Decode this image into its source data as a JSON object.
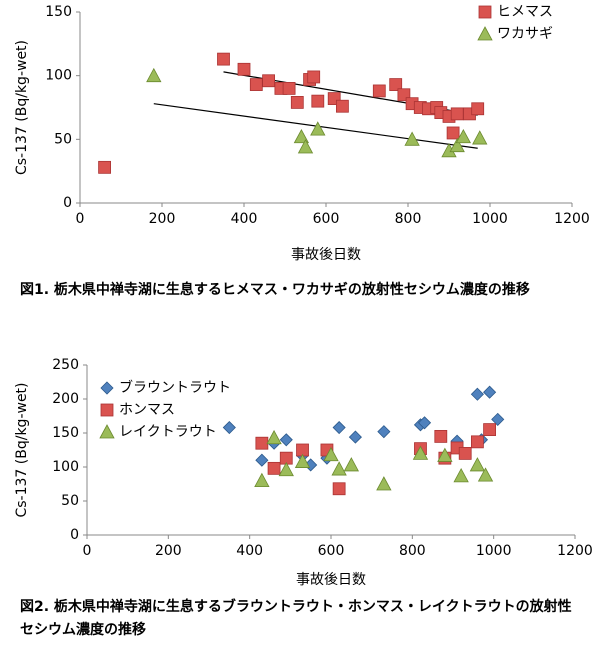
{
  "chart_data": [
    {
      "type": "scatter",
      "caption": [
        "図1. 栃木県中禅寺湖に生息するヒメマス・ワカサギの放射性セシウム濃度の推移"
      ],
      "xlabel": "事故後日数",
      "ylabel": "Cs-137 (Bq/kg-wet)",
      "xlim": [
        0,
        1200
      ],
      "xticks": [
        0,
        200,
        400,
        600,
        800,
        1000,
        1200
      ],
      "ylim": [
        0,
        150
      ],
      "yticks": [
        0,
        50,
        100,
        150
      ],
      "legend": "top-right",
      "series": [
        {
          "name": "ヒメマス",
          "color": "#d9534f",
          "marker": "square",
          "x": [
            60,
            350,
            400,
            430,
            460,
            490,
            510,
            530,
            560,
            570,
            580,
            620,
            640,
            730,
            770,
            790,
            810,
            830,
            850,
            870,
            880,
            900,
            910,
            920,
            950,
            970
          ],
          "values": [
            28,
            113,
            105,
            93,
            96,
            90,
            90,
            79,
            97,
            99,
            80,
            82,
            76,
            88,
            93,
            85,
            78,
            75,
            74,
            75,
            71,
            68,
            55,
            70,
            70,
            74
          ]
        },
        {
          "name": "ワカサギ",
          "color": "#9bbb59",
          "marker": "triangle",
          "x": [
            180,
            540,
            550,
            580,
            810,
            900,
            920,
            935,
            975
          ],
          "values": [
            100,
            52,
            44,
            58,
            50,
            41,
            45,
            52,
            51
          ]
        }
      ],
      "trendlines": [
        {
          "color": "#000000",
          "x": [
            350,
            970
          ],
          "y": [
            103,
            69
          ]
        },
        {
          "color": "#000000",
          "x": [
            180,
            970
          ],
          "y": [
            78,
            43
          ]
        }
      ]
    },
    {
      "type": "scatter",
      "caption": [
        "図2. 栃木県中禅寺湖に生息するブラウントラウト・ホンマス・レイクトラウトの放射性",
        "セシウム濃度の推移"
      ],
      "xlabel": "事故後日数",
      "ylabel": "Cs-137 (Bq/kg-wet)",
      "xlim": [
        0,
        1200
      ],
      "xticks": [
        0,
        200,
        400,
        600,
        800,
        1000,
        1200
      ],
      "ylim": [
        0,
        250
      ],
      "yticks": [
        0,
        50,
        100,
        150,
        200,
        250
      ],
      "legend": "top-left",
      "series": [
        {
          "name": "ブラウントラウト",
          "color": "#4f81bd",
          "marker": "diamond",
          "x": [
            350,
            430,
            460,
            490,
            530,
            550,
            590,
            620,
            660,
            730,
            820,
            830,
            910,
            960,
            970,
            990,
            1010
          ],
          "values": [
            158,
            110,
            135,
            140,
            117,
            103,
            113,
            158,
            144,
            152,
            162,
            165,
            138,
            207,
            140,
            210,
            170
          ]
        },
        {
          "name": "ホンマス",
          "color": "#d9534f",
          "marker": "square",
          "x": [
            430,
            460,
            490,
            530,
            590,
            620,
            820,
            870,
            880,
            910,
            930,
            960,
            990
          ],
          "values": [
            135,
            98,
            113,
            125,
            125,
            68,
            127,
            145,
            113,
            128,
            120,
            137,
            155
          ]
        },
        {
          "name": "レイクトラウト",
          "color": "#9bbb59",
          "marker": "triangle",
          "x": [
            430,
            460,
            490,
            530,
            600,
            620,
            650,
            730,
            820,
            880,
            920,
            960,
            980
          ],
          "values": [
            80,
            143,
            96,
            108,
            118,
            97,
            103,
            75,
            120,
            117,
            87,
            103,
            88
          ]
        }
      ]
    }
  ]
}
